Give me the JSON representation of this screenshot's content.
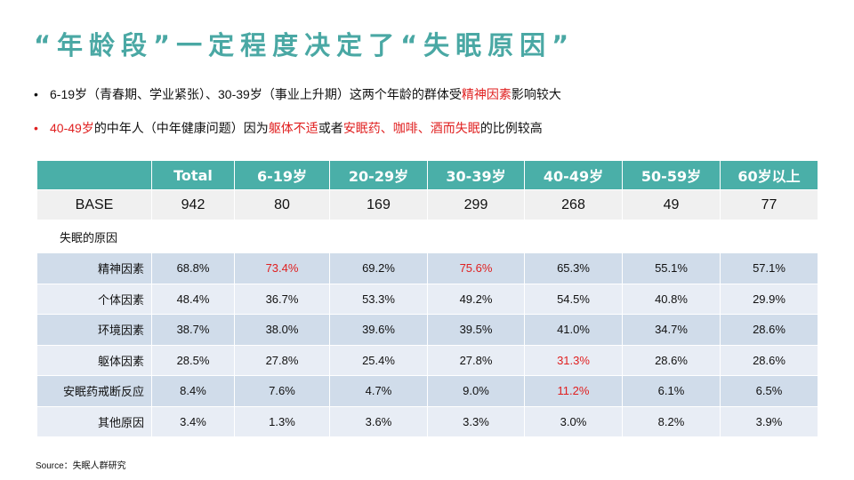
{
  "title": "“年龄段”一定程度决定了“失眠原因”",
  "bullets": [
    {
      "dot_color": "#111111",
      "segments": [
        {
          "text": "6-19岁（青春期、学业紧张）、30-39岁（事业上升期）这两个年龄的群体受",
          "highlight": false
        },
        {
          "text": "精神因素",
          "highlight": true
        },
        {
          "text": "影响较大",
          "highlight": false
        }
      ]
    },
    {
      "dot_color": "#e02020",
      "segments": [
        {
          "text": "40-49岁",
          "highlight": true
        },
        {
          "text": "的中年人（中年健康问题）因为",
          "highlight": false
        },
        {
          "text": "躯体不适",
          "highlight": true
        },
        {
          "text": "或者",
          "highlight": false
        },
        {
          "text": "安眠药、咖啡、酒而失眠",
          "highlight": true
        },
        {
          "text": "的比例较高",
          "highlight": false
        }
      ]
    }
  ],
  "table": {
    "headers": [
      "",
      "Total",
      "6-19岁",
      "20-29岁",
      "30-39岁",
      "40-49岁",
      "50-59岁",
      "60岁以上"
    ],
    "base": {
      "label": "BASE",
      "values": [
        "942",
        "80",
        "169",
        "299",
        "268",
        "49",
        "77"
      ]
    },
    "section_label": "失眠的原因",
    "rows": [
      {
        "label": "精神因素",
        "values": [
          "68.8%",
          "73.4%",
          "69.2%",
          "75.6%",
          "65.3%",
          "55.1%",
          "57.1%"
        ],
        "highlight": [
          false,
          true,
          false,
          true,
          false,
          false,
          false
        ]
      },
      {
        "label": "个体因素",
        "values": [
          "48.4%",
          "36.7%",
          "53.3%",
          "49.2%",
          "54.5%",
          "40.8%",
          "29.9%"
        ],
        "highlight": [
          false,
          false,
          false,
          false,
          false,
          false,
          false
        ]
      },
      {
        "label": "环境因素",
        "values": [
          "38.7%",
          "38.0%",
          "39.6%",
          "39.5%",
          "41.0%",
          "34.7%",
          "28.6%"
        ],
        "highlight": [
          false,
          false,
          false,
          false,
          false,
          false,
          false
        ]
      },
      {
        "label": "躯体因素",
        "values": [
          "28.5%",
          "27.8%",
          "25.4%",
          "27.8%",
          "31.3%",
          "28.6%",
          "28.6%"
        ],
        "highlight": [
          false,
          false,
          false,
          false,
          true,
          false,
          false
        ]
      },
      {
        "label": "安眠药戒断反应",
        "values": [
          "8.4%",
          "7.6%",
          "4.7%",
          "9.0%",
          "11.2%",
          "6.1%",
          "6.5%"
        ],
        "highlight": [
          false,
          false,
          false,
          false,
          true,
          false,
          false
        ]
      },
      {
        "label": "其他原因",
        "values": [
          "3.4%",
          "1.3%",
          "3.6%",
          "3.3%",
          "3.0%",
          "8.2%",
          "3.9%"
        ],
        "highlight": [
          false,
          false,
          false,
          false,
          false,
          false,
          false
        ]
      }
    ]
  },
  "source": "Source：失眠人群研究",
  "colors": {
    "accent": "#4aafa8",
    "title": "#4aa8a4",
    "highlight": "#e02020",
    "row_dark": "#d0dcea",
    "row_light": "#e8edf5",
    "base_row": "#f0f0f0"
  }
}
